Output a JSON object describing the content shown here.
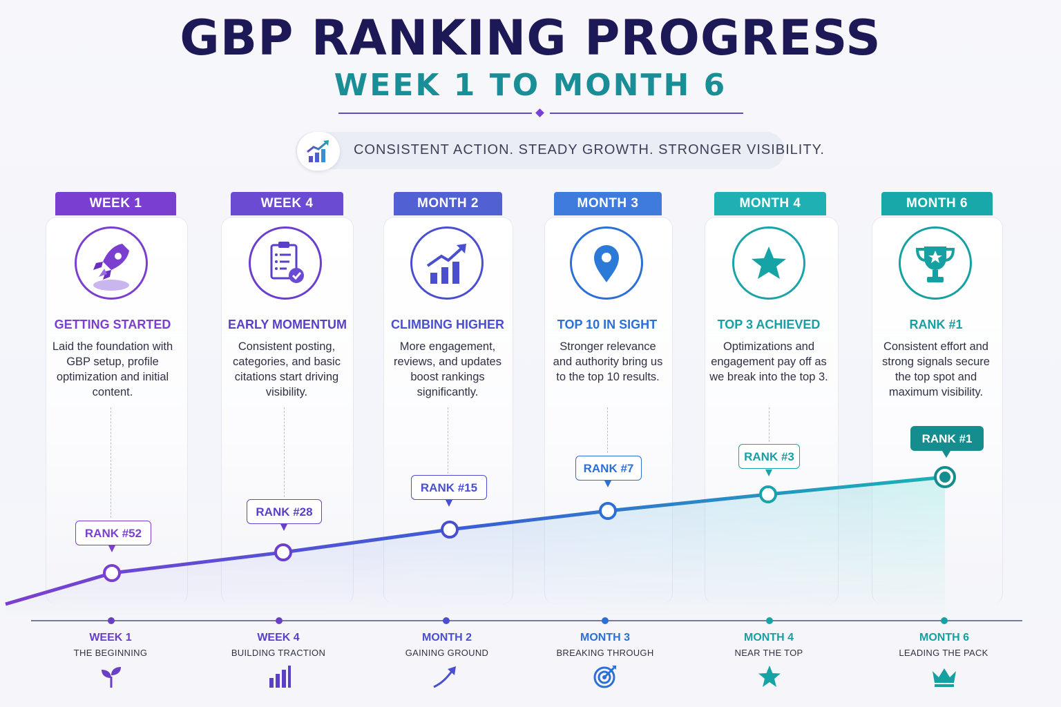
{
  "header": {
    "title": "GBP RANKING PROGRESS",
    "subtitle": "WEEK 1 TO MONTH 6",
    "tagline": "CONSISTENT ACTION. STEADY GROWTH. STRONGER VISIBILITY.",
    "tagline_icon": "growth-chart-icon"
  },
  "milestones": [
    {
      "tab": "WEEK 1",
      "heading": "GETTING STARTED",
      "description": "Laid the foundation with GBP setup, profile optimization and initial content.",
      "rank_label": "RANK #52",
      "rank": 52,
      "axis_label": "WEEK 1",
      "axis_sub": "THE BEGINNING",
      "icon": "rocket-icon",
      "axis_icon": "sprout-icon",
      "color": "#7b3fd0"
    },
    {
      "tab": "WEEK 4",
      "heading": "EARLY MOMENTUM",
      "description": "Consistent posting, categories, and basic citations start driving visibility.",
      "rank_label": "RANK #28",
      "rank": 28,
      "axis_label": "WEEK 4",
      "axis_sub": "BUILDING TRACTION",
      "icon": "clipboard-check-icon",
      "axis_icon": "bar-chart-icon",
      "color": "#6a3fd0"
    },
    {
      "tab": "MONTH 2",
      "heading": "CLIMBING HIGHER",
      "description": "More engagement, reviews, and updates boost rankings significantly.",
      "rank_label": "RANK #15",
      "rank": 15,
      "axis_label": "MONTH 2",
      "axis_sub": "GAINING GROUND",
      "icon": "rising-chart-icon",
      "axis_icon": "arrow-up-right-icon",
      "color": "#4a4fcf"
    },
    {
      "tab": "MONTH 3",
      "heading": "TOP 10 IN SIGHT",
      "description": "Stronger relevance and authority bring us to the top 10 results.",
      "rank_label": "RANK #7",
      "rank": 7,
      "axis_label": "MONTH 3",
      "axis_sub": "BREAKING THROUGH",
      "icon": "location-pin-icon",
      "axis_icon": "target-icon",
      "color": "#2c6fd6"
    },
    {
      "tab": "MONTH 4",
      "heading": "TOP 3 ACHIEVED",
      "description": "Optimizations and engagement pay off as we break into the top 3.",
      "rank_label": "RANK #3",
      "rank": 3,
      "axis_label": "MONTH 4",
      "axis_sub": "NEAR THE TOP",
      "icon": "star-icon",
      "axis_icon": "star-icon",
      "color": "#1aa3a8"
    },
    {
      "tab": "MONTH 6",
      "heading": "RANK #1",
      "description": "Consistent effort and strong signals secure the top spot and maximum visibility.",
      "rank_label": "RANK #1",
      "rank": 1,
      "axis_label": "MONTH 6",
      "axis_sub": "LEADING THE PACK",
      "icon": "trophy-icon",
      "axis_icon": "crown-icon",
      "color": "#16a0a2"
    }
  ]
}
